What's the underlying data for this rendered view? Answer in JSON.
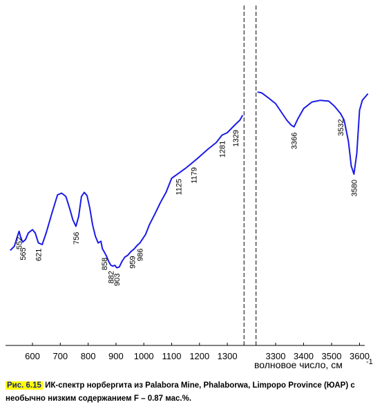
{
  "chart_data": {
    "type": "line",
    "title": "",
    "xlabel": "волновое число, см",
    "xlabel_sup": "-1",
    "axis_break": [
      1355,
      3235
    ],
    "x_ticks": [
      "600",
      "700",
      "800",
      "900",
      "1000",
      "1100",
      "1200",
      "1300",
      "3300",
      "3400",
      "3500",
      "3600"
    ],
    "series": [
      {
        "color": "#1a1ae6",
        "x": [
          520,
          535,
          548,
          552,
          558,
          565,
          575,
          585,
          600,
          610,
          621,
          635,
          650,
          670,
          690,
          705,
          720,
          735,
          745,
          756,
          766,
          776,
          786,
          796,
          806,
          816,
          826,
          836,
          846,
          851,
          858,
          866,
          872,
          878,
          882,
          889,
          896,
          903,
          912,
          922,
          932,
          942,
          952,
          959,
          966,
          976,
          986,
          996,
          1006,
          1020,
          1040,
          1060,
          1080,
          1100,
          1125,
          1150,
          1179,
          1200,
          1230,
          1260,
          1281,
          1300,
          1329,
          1345,
          1355,
          3235,
          3250,
          3270,
          3300,
          3320,
          3340,
          3356,
          3366,
          3380,
          3400,
          3430,
          3460,
          3490,
          3510,
          3532,
          3545,
          3560,
          3566,
          3570,
          3580,
          3590,
          3600,
          3610,
          3620,
          3630
        ],
        "y": [
          0.03,
          0.08,
          0.22,
          0.26,
          0.18,
          0.13,
          0.16,
          0.24,
          0.28,
          0.24,
          0.12,
          0.1,
          0.25,
          0.48,
          0.7,
          0.72,
          0.68,
          0.52,
          0.4,
          0.32,
          0.44,
          0.68,
          0.73,
          0.69,
          0.54,
          0.34,
          0.2,
          0.12,
          0.14,
          0.05,
          0.01,
          -0.04,
          -0.09,
          -0.13,
          -0.15,
          -0.16,
          -0.15,
          -0.18,
          -0.17,
          -0.1,
          -0.05,
          -0.03,
          0.01,
          0.03,
          0.05,
          0.09,
          0.12,
          0.17,
          0.22,
          0.34,
          0.47,
          0.61,
          0.73,
          0.9,
          0.96,
          1.02,
          1.1,
          1.16,
          1.25,
          1.33,
          1.42,
          1.45,
          1.55,
          1.6,
          1.66,
          1.94,
          1.93,
          1.88,
          1.8,
          1.7,
          1.6,
          1.54,
          1.52,
          1.62,
          1.74,
          1.82,
          1.84,
          1.83,
          1.77,
          1.68,
          1.6,
          1.35,
          1.18,
          1.05,
          0.95,
          1.2,
          1.72,
          1.84,
          1.88,
          1.92
        ]
      }
    ],
    "peak_labels": [
      {
        "x": 552,
        "y": 0.26,
        "text": "552",
        "side": "below"
      },
      {
        "x": 565,
        "y": 0.13,
        "text": "565",
        "side": "below"
      },
      {
        "x": 621,
        "y": 0.12,
        "text": "621",
        "side": "below"
      },
      {
        "x": 756,
        "y": 0.32,
        "text": "756",
        "side": "below"
      },
      {
        "x": 858,
        "y": 0.01,
        "text": "858",
        "side": "below"
      },
      {
        "x": 882,
        "y": -0.15,
        "text": "882",
        "side": "below"
      },
      {
        "x": 903,
        "y": -0.18,
        "text": "903",
        "side": "below"
      },
      {
        "x": 959,
        "y": 0.03,
        "text": "959",
        "side": "below"
      },
      {
        "x": 986,
        "y": 0.12,
        "text": "986",
        "side": "below"
      },
      {
        "x": 1125,
        "y": 0.96,
        "text": "1125",
        "side": "below"
      },
      {
        "x": 1179,
        "y": 1.1,
        "text": "1179",
        "side": "below"
      },
      {
        "x": 1281,
        "y": 1.42,
        "text": "1281",
        "side": "below"
      },
      {
        "x": 1329,
        "y": 1.55,
        "text": "1329",
        "side": "below"
      },
      {
        "x": 3366,
        "y": 1.52,
        "text": "3366",
        "side": "below"
      },
      {
        "x": 3532,
        "y": 1.68,
        "text": "3532",
        "side": "below"
      },
      {
        "x": 3580,
        "y": 0.95,
        "text": "3580",
        "side": "below"
      }
    ]
  },
  "caption": {
    "figure_number": "Рис. 6.15",
    "text": " ИК-спектр норбергита из Palabora Mine, Phalaborwa, Limpopo Province (ЮАР) с необычно низким содержанием F – 0.87 мас.%."
  }
}
